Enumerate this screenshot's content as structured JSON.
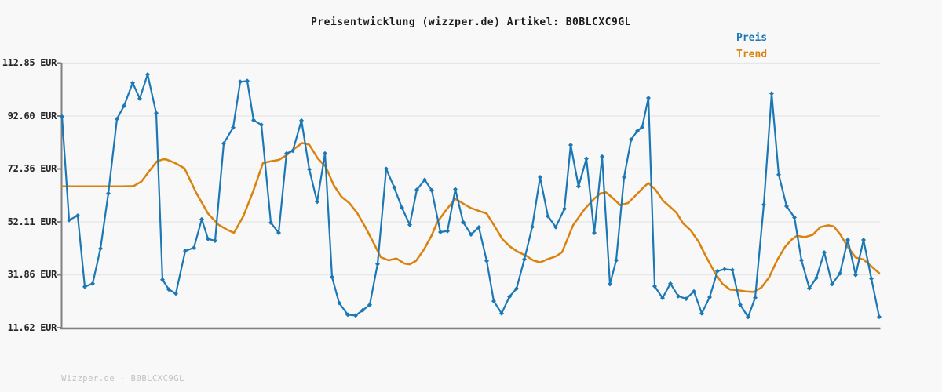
{
  "title": "Preisentwicklung (wizzper.de) Artikel: B0BLCXC9GL",
  "legend": {
    "preis": "Preis",
    "trend": "Trend"
  },
  "y_axis": {
    "labels": [
      "112.85 EUR",
      "92.60 EUR",
      "72.36 EUR",
      "52.11 EUR",
      "31.86 EUR",
      "11.62 EUR"
    ],
    "unit": "EUR"
  },
  "footer": "Wizzper.de - B0BLCXC9GL",
  "colors": {
    "preis": "#1b78b5",
    "trend": "#da810e",
    "grid": "#e7e7e7",
    "axis": "#808080",
    "background": "#f8f8f8",
    "title_text": "#1a1a1a",
    "tick_text": "#262626",
    "footer_text": "#c2c2c2"
  },
  "chart_data": {
    "type": "line",
    "title": "Preisentwicklung (wizzper.de) Artikel: B0BLCXC9GL",
    "xlabel": "",
    "ylabel": "EUR",
    "y_ticks": [
      112.85,
      92.6,
      72.36,
      52.11,
      31.86,
      11.62
    ],
    "ylim": [
      11.62,
      112.85
    ],
    "grid": "horizontal",
    "legend_position": "top-right",
    "x_axis_labels": "none",
    "series": [
      {
        "name": "Preis",
        "color": "#1b78b5",
        "marker": "diamond",
        "points_x_value_eur": [
          [
            79,
            92.4
          ],
          [
            88,
            52.8
          ],
          [
            99,
            54.5
          ],
          [
            108,
            27.3
          ],
          [
            118,
            28.5
          ],
          [
            128,
            41.9
          ],
          [
            138,
            63.0
          ],
          [
            149,
            91.5
          ],
          [
            158,
            96.5
          ],
          [
            169,
            105.3
          ],
          [
            178,
            99.3
          ],
          [
            188,
            108.5
          ],
          [
            199,
            93.7
          ],
          [
            207,
            30.0
          ],
          [
            215,
            26.3
          ],
          [
            224,
            24.7
          ],
          [
            236,
            41.0
          ],
          [
            247,
            42.2
          ],
          [
            257,
            53.1
          ],
          [
            265,
            45.6
          ],
          [
            274,
            44.9
          ],
          [
            285,
            82.1
          ],
          [
            297,
            88.2
          ],
          [
            306,
            105.7
          ],
          [
            315,
            106.0
          ],
          [
            323,
            91.0
          ],
          [
            333,
            89.2
          ],
          [
            345,
            51.8
          ],
          [
            355,
            47.9
          ],
          [
            365,
            78.3
          ],
          [
            373,
            79.3
          ],
          [
            384,
            90.9
          ],
          [
            394,
            72.2
          ],
          [
            404,
            59.8
          ],
          [
            414,
            78.3
          ],
          [
            423,
            31.0
          ],
          [
            432,
            21.1
          ],
          [
            443,
            16.6
          ],
          [
            453,
            16.3
          ],
          [
            462,
            18.3
          ],
          [
            471,
            20.4
          ],
          [
            481,
            36.0
          ],
          [
            492,
            72.4
          ],
          [
            502,
            65.4
          ],
          [
            512,
            57.5
          ],
          [
            522,
            51.0
          ],
          [
            531,
            64.4
          ],
          [
            541,
            68.2
          ],
          [
            550,
            64.2
          ],
          [
            561,
            48.2
          ],
          [
            570,
            48.6
          ],
          [
            580,
            64.6
          ],
          [
            590,
            52.0
          ],
          [
            600,
            47.3
          ],
          [
            610,
            50.0
          ],
          [
            620,
            37.2
          ],
          [
            629,
            21.8
          ],
          [
            639,
            17.1
          ],
          [
            649,
            23.5
          ],
          [
            658,
            26.6
          ],
          [
            668,
            37.8
          ],
          [
            678,
            50.2
          ],
          [
            688,
            69.2
          ],
          [
            698,
            54.3
          ],
          [
            708,
            50.1
          ],
          [
            719,
            57.1
          ],
          [
            727,
            81.5
          ],
          [
            737,
            65.7
          ],
          [
            747,
            76.3
          ],
          [
            757,
            47.9
          ],
          [
            767,
            77.1
          ],
          [
            777,
            28.3
          ],
          [
            785,
            37.4
          ],
          [
            795,
            69.2
          ],
          [
            804,
            83.6
          ],
          [
            812,
            86.9
          ],
          [
            818,
            88.3
          ],
          [
            826,
            99.5
          ],
          [
            834,
            27.5
          ],
          [
            844,
            23.0
          ],
          [
            854,
            28.5
          ],
          [
            864,
            23.7
          ],
          [
            874,
            22.7
          ],
          [
            884,
            25.5
          ],
          [
            894,
            17.1
          ],
          [
            904,
            23.3
          ],
          [
            914,
            33.3
          ],
          [
            923,
            34.0
          ],
          [
            933,
            33.7
          ],
          [
            943,
            20.4
          ],
          [
            953,
            15.7
          ],
          [
            962,
            23.1
          ],
          [
            973,
            58.7
          ],
          [
            983,
            101.2
          ],
          [
            992,
            70.2
          ],
          [
            1002,
            58.1
          ],
          [
            1012,
            53.8
          ],
          [
            1021,
            37.4
          ],
          [
            1031,
            26.7
          ],
          [
            1040,
            30.7
          ],
          [
            1050,
            40.4
          ],
          [
            1060,
            28.3
          ],
          [
            1070,
            32.4
          ],
          [
            1080,
            45.2
          ],
          [
            1090,
            31.8
          ],
          [
            1100,
            45.2
          ],
          [
            1110,
            30.4
          ],
          [
            1120,
            15.8
          ]
        ]
      },
      {
        "name": "Trend",
        "color": "#da810e",
        "marker": "none",
        "points_x_value_eur": [
          [
            79,
            65.7
          ],
          [
            95,
            65.7
          ],
          [
            110,
            65.7
          ],
          [
            125,
            65.7
          ],
          [
            140,
            65.7
          ],
          [
            155,
            65.7
          ],
          [
            170,
            65.8
          ],
          [
            180,
            67.5
          ],
          [
            190,
            71.5
          ],
          [
            200,
            75.3
          ],
          [
            210,
            76.2
          ],
          [
            222,
            74.8
          ],
          [
            235,
            72.6
          ],
          [
            250,
            63.2
          ],
          [
            265,
            55.3
          ],
          [
            278,
            51.1
          ],
          [
            290,
            49.0
          ],
          [
            298,
            47.9
          ],
          [
            310,
            54.3
          ],
          [
            323,
            64.2
          ],
          [
            335,
            74.6
          ],
          [
            345,
            75.3
          ],
          [
            355,
            75.8
          ],
          [
            365,
            77.6
          ],
          [
            375,
            80.1
          ],
          [
            385,
            82.3
          ],
          [
            394,
            81.6
          ],
          [
            405,
            76.3
          ],
          [
            415,
            73.2
          ],
          [
            425,
            66.2
          ],
          [
            435,
            61.7
          ],
          [
            445,
            59.3
          ],
          [
            455,
            55.5
          ],
          [
            465,
            50.3
          ],
          [
            475,
            44.6
          ],
          [
            485,
            38.6
          ],
          [
            495,
            37.4
          ],
          [
            505,
            38.1
          ],
          [
            515,
            36.2
          ],
          [
            522,
            35.9
          ],
          [
            530,
            37.2
          ],
          [
            540,
            41.5
          ],
          [
            550,
            47.0
          ],
          [
            557,
            52.0
          ],
          [
            568,
            56.5
          ],
          [
            580,
            61.0
          ],
          [
            590,
            59.1
          ],
          [
            600,
            57.4
          ],
          [
            610,
            56.3
          ],
          [
            620,
            55.3
          ],
          [
            630,
            50.5
          ],
          [
            640,
            45.5
          ],
          [
            650,
            42.6
          ],
          [
            660,
            40.6
          ],
          [
            670,
            39.2
          ],
          [
            679,
            37.4
          ],
          [
            688,
            36.6
          ],
          [
            698,
            37.9
          ],
          [
            708,
            38.9
          ],
          [
            716,
            40.5
          ],
          [
            730,
            50.8
          ],
          [
            745,
            57.1
          ],
          [
            757,
            61.0
          ],
          [
            765,
            63.0
          ],
          [
            772,
            63.4
          ],
          [
            780,
            61.4
          ],
          [
            790,
            58.5
          ],
          [
            800,
            59.3
          ],
          [
            810,
            62.3
          ],
          [
            820,
            65.4
          ],
          [
            826,
            67.0
          ],
          [
            835,
            64.4
          ],
          [
            845,
            60.1
          ],
          [
            855,
            57.5
          ],
          [
            862,
            55.5
          ],
          [
            870,
            51.6
          ],
          [
            880,
            48.8
          ],
          [
            890,
            44.5
          ],
          [
            900,
            38.5
          ],
          [
            910,
            33.0
          ],
          [
            920,
            28.5
          ],
          [
            930,
            26.2
          ],
          [
            940,
            26.0
          ],
          [
            950,
            25.5
          ],
          [
            960,
            25.3
          ],
          [
            970,
            27.0
          ],
          [
            980,
            31.0
          ],
          [
            990,
            37.5
          ],
          [
            1000,
            42.5
          ],
          [
            1008,
            45.2
          ],
          [
            1015,
            46.8
          ],
          [
            1025,
            46.3
          ],
          [
            1035,
            47.1
          ],
          [
            1045,
            50.1
          ],
          [
            1055,
            50.8
          ],
          [
            1062,
            50.4
          ],
          [
            1070,
            47.5
          ],
          [
            1080,
            42.5
          ],
          [
            1090,
            38.5
          ],
          [
            1100,
            37.7
          ],
          [
            1110,
            35.1
          ],
          [
            1120,
            32.5
          ]
        ]
      }
    ]
  }
}
